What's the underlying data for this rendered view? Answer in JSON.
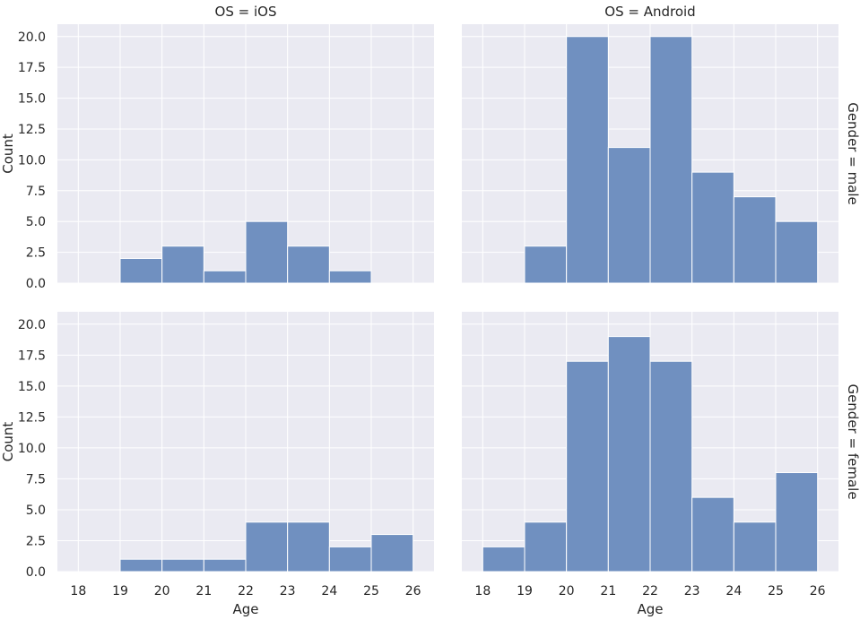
{
  "chart_data": {
    "type": "bar",
    "column_titles": [
      "OS = iOS",
      "OS = Android"
    ],
    "row_titles": [
      "Gender = male",
      "Gender = female"
    ],
    "xlabel": "Age",
    "ylabel": "Count",
    "xlim": [
      17.5,
      26.5
    ],
    "ylim": [
      0,
      21
    ],
    "x_ticks": [
      "18",
      "19",
      "20",
      "21",
      "22",
      "23",
      "24",
      "25",
      "26"
    ],
    "y_ticks": [
      "0.0",
      "2.5",
      "5.0",
      "7.5",
      "10.0",
      "12.5",
      "15.0",
      "17.5",
      "20.0"
    ],
    "bin_edges": [
      19,
      20,
      21,
      22,
      23,
      24,
      25,
      26
    ],
    "bin_edges_android_male": [
      19,
      20,
      21,
      22,
      23,
      24,
      25,
      26
    ],
    "panels": [
      {
        "row": "Gender = male",
        "col": "OS = iOS",
        "bins": [
          [
            19,
            20,
            2
          ],
          [
            20,
            21,
            3
          ],
          [
            21,
            22,
            1
          ],
          [
            22,
            23,
            5
          ],
          [
            23,
            24,
            3
          ],
          [
            24,
            25,
            1
          ]
        ]
      },
      {
        "row": "Gender = male",
        "col": "OS = Android",
        "bins": [
          [
            19,
            20,
            3
          ],
          [
            20,
            21,
            20
          ],
          [
            21,
            22,
            11
          ],
          [
            22,
            23,
            20
          ],
          [
            23,
            24,
            9
          ],
          [
            24,
            25,
            7
          ],
          [
            25,
            26,
            5
          ]
        ]
      },
      {
        "row": "Gender = female",
        "col": "OS = iOS",
        "bins": [
          [
            19,
            20,
            1
          ],
          [
            20,
            21,
            1
          ],
          [
            21,
            22,
            1
          ],
          [
            22,
            23,
            4
          ],
          [
            23,
            24,
            4
          ],
          [
            24,
            25,
            2
          ],
          [
            25,
            26,
            3
          ]
        ]
      },
      {
        "row": "Gender = female",
        "col": "OS = Android",
        "bins": [
          [
            18,
            19,
            2
          ],
          [
            19,
            20,
            4
          ],
          [
            20,
            21,
            17
          ],
          [
            21,
            22,
            19
          ],
          [
            22,
            23,
            17
          ],
          [
            23,
            24,
            6
          ],
          [
            24,
            25,
            4
          ],
          [
            25,
            26,
            8
          ]
        ]
      }
    ],
    "colors": {
      "bar": "#7090c0",
      "bar_edge": "#ffffff",
      "panel_bg": "#eaeaf2",
      "grid": "#ffffff"
    },
    "grid": true
  }
}
